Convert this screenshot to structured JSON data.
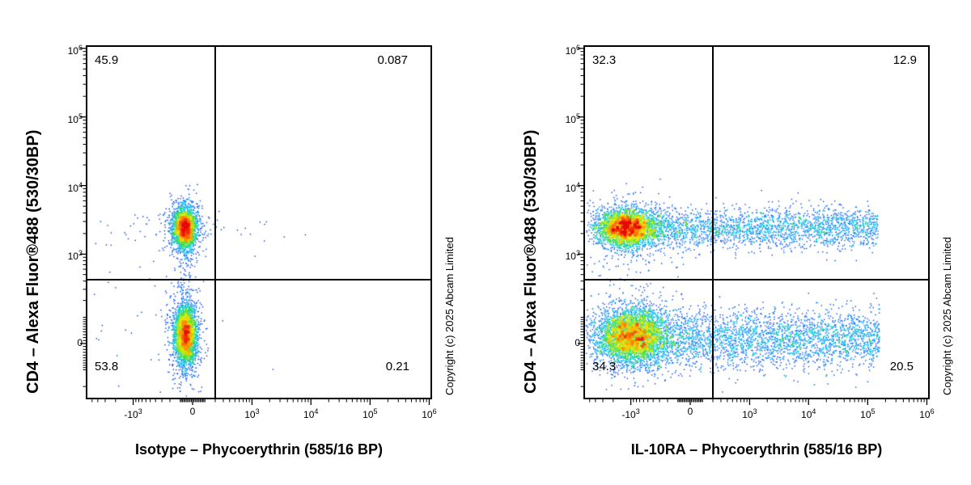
{
  "chart_data": {
    "type": "scatter",
    "variant": "flow-cytometry-pseudocolor-dot-plot",
    "shared": {
      "y_label": "CD4 – Alexa Fluor®488 (530/30BP)",
      "copyright": "Copyright (c) 2025 Abcam Limited",
      "x_scale": {
        "type": "biexponential",
        "linear_width": 200,
        "min": -6000,
        "max": 1050000
      },
      "y_scale": {
        "type": "biexponential",
        "linear_width": 100,
        "min": -300,
        "max": 1050000
      },
      "x_ticks": [
        {
          "value": -1000,
          "base": "-10",
          "exp": "3"
        },
        {
          "value": 0,
          "base": "0",
          "exp": ""
        },
        {
          "value": 1000,
          "base": "10",
          "exp": "3"
        },
        {
          "value": 10000,
          "base": "10",
          "exp": "4"
        },
        {
          "value": 100000,
          "base": "10",
          "exp": "5"
        },
        {
          "value": 1000000,
          "base": "10",
          "exp": "6"
        }
      ],
      "y_ticks": [
        {
          "value": 0,
          "base": "0",
          "exp": ""
        },
        {
          "value": 1000,
          "base": "10",
          "exp": "3"
        },
        {
          "value": 10000,
          "base": "10",
          "exp": "4"
        },
        {
          "value": 100000,
          "base": "10",
          "exp": "5"
        },
        {
          "value": 1000000,
          "base": "10",
          "exp": "6"
        }
      ]
    },
    "plots": [
      {
        "x_label": "Isotype – Phycoerythrin (585/16 BP)",
        "quadrants": {
          "top_left": "45.9",
          "top_right": "0.087",
          "bottom_left": "53.8",
          "bottom_right": "0.21"
        },
        "gate": {
          "x": 200,
          "y": 420
        },
        "seed": 12,
        "populations": [
          {
            "name": "CD4-positive cluster core",
            "count": 2600,
            "x_dist": "gauss",
            "x_center": -60,
            "x_spread": 0.2,
            "y_center": 2400,
            "y_spread": 0.3
          },
          {
            "name": "CD4-positive cluster halo",
            "count": 500,
            "x_dist": "gauss",
            "x_center": -60,
            "x_spread": 0.38,
            "y_center": 2400,
            "y_spread": 0.55
          },
          {
            "name": "CD4-negative cluster core",
            "count": 3000,
            "x_dist": "gauss",
            "x_center": -55,
            "x_spread": 0.2,
            "y_center": 30,
            "y_spread": 0.45
          },
          {
            "name": "CD4-negative cluster halo",
            "count": 600,
            "x_dist": "gauss",
            "x_center": -55,
            "x_spread": 0.36,
            "y_center": 20,
            "y_spread": 0.8
          },
          {
            "name": "inter-cluster vertical bridge",
            "count": 140,
            "x_dist": "gauss",
            "x_center": -55,
            "x_spread": 0.15,
            "y_center": 800,
            "y_spread": 1.1
          },
          {
            "name": "sparse horizontal scatter at CD4+ level",
            "count": 60,
            "x_dist": "gauss",
            "x_center": -150,
            "x_spread": 2.6,
            "y_center": 2400,
            "y_spread": 0.28
          },
          {
            "name": "background noise",
            "count": 50,
            "x_dist": "gauss",
            "x_center": -600,
            "x_spread": 1.5,
            "y_center": 100,
            "y_spread": 1.5
          }
        ]
      },
      {
        "x_label": "IL-10RA – Phycoerythrin (585/16 BP)",
        "quadrants": {
          "top_left": "32.3",
          "top_right": "12.9",
          "bottom_left": "34.3",
          "bottom_right": "20.5"
        },
        "gate": {
          "x": 200,
          "y": 420
        },
        "seed": 5,
        "populations": [
          {
            "name": "CD4+ IL-10RA-low dense blob",
            "count": 3200,
            "x_dist": "gauss",
            "x_center": -1200,
            "x_spread": 0.55,
            "y_center": 2400,
            "y_spread": 0.3
          },
          {
            "name": "CD4+ blob halo",
            "count": 600,
            "x_dist": "gauss",
            "x_center": -1100,
            "x_spread": 0.8,
            "y_center": 2400,
            "y_spread": 0.5
          },
          {
            "name": "CD4+ IL-10RA-positive tail",
            "count": 2300,
            "x_dist": "uniform",
            "x_min": -500,
            "x_max": 150000,
            "y_center": 2400,
            "y_spread": 0.33
          },
          {
            "name": "CD4- IL-10RA-low dense blob",
            "count": 3600,
            "x_dist": "gauss",
            "x_center": -1000,
            "x_spread": 0.65,
            "y_center": 25,
            "y_spread": 0.45
          },
          {
            "name": "CD4- blob halo",
            "count": 700,
            "x_dist": "gauss",
            "x_center": -900,
            "x_spread": 0.95,
            "y_center": 20,
            "y_spread": 0.7
          },
          {
            "name": "CD4- IL-10RA-positive tail",
            "count": 3100,
            "x_dist": "uniform",
            "x_min": -700,
            "x_max": 160000,
            "y_center": 15,
            "y_spread": 0.5
          },
          {
            "name": "between-band noise",
            "count": 130,
            "x_dist": "gauss",
            "x_center": -700,
            "x_spread": 1.2,
            "y_center": 600,
            "y_spread": 1.2
          }
        ]
      }
    ],
    "colormap": [
      [
        0,
        [
          0,
          0,
          170
        ]
      ],
      [
        0.28,
        [
          0,
          90,
          255
        ]
      ],
      [
        0.5,
        [
          0,
          205,
          235
        ]
      ],
      [
        0.64,
        [
          60,
          220,
          60
        ]
      ],
      [
        0.8,
        [
          235,
          235,
          0
        ]
      ],
      [
        0.9,
        [
          255,
          130,
          0
        ]
      ],
      [
        1,
        [
          230,
          10,
          10
        ]
      ]
    ]
  }
}
